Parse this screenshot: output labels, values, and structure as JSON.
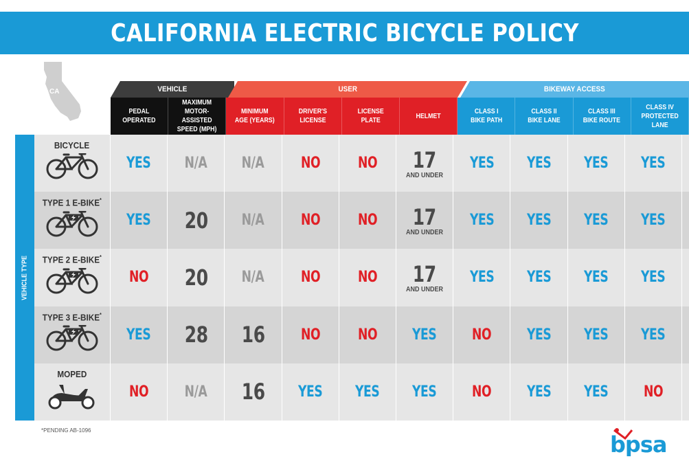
{
  "title": "CALIFORNIA ELECTRIC BICYCLE POLICY",
  "map_label": "CA",
  "groups": {
    "vehicle": "VEHICLE",
    "user": "USER",
    "bikeway": "BIKEWAY ACCESS"
  },
  "columns": [
    "PEDAL\nOPERATED",
    "MAXIMUM\nMOTOR-ASSISTED\nSPEED (MPH)",
    "MINIMUM\nAGE (YEARS)",
    "DRIVER'S\nLICENSE",
    "LICENSE\nPLATE",
    "HELMET",
    "CLASS I\nBIKE PATH",
    "CLASS II\nBIKE LANE",
    "CLASS III\nBIKE ROUTE",
    "CLASS IV\nPROTECTED LANE"
  ],
  "side_label": "VEHICLE TYPE",
  "rows": [
    {
      "label": "BICYCLE",
      "mark": "",
      "icon": "bicycle-icon",
      "cells": [
        {
          "v": "YES"
        },
        {
          "v": "N/A"
        },
        {
          "v": "N/A"
        },
        {
          "v": "NO"
        },
        {
          "v": "NO"
        },
        {
          "v": "17",
          "sub": "AND UNDER"
        },
        {
          "v": "YES"
        },
        {
          "v": "YES"
        },
        {
          "v": "YES"
        },
        {
          "v": "YES"
        }
      ]
    },
    {
      "label": "TYPE 1 E-BIKE",
      "mark": "*",
      "icon": "e-bike-icon",
      "cells": [
        {
          "v": "YES"
        },
        {
          "v": "20"
        },
        {
          "v": "N/A"
        },
        {
          "v": "NO"
        },
        {
          "v": "NO"
        },
        {
          "v": "17",
          "sub": "AND UNDER"
        },
        {
          "v": "YES"
        },
        {
          "v": "YES"
        },
        {
          "v": "YES"
        },
        {
          "v": "YES"
        }
      ]
    },
    {
      "label": "TYPE 2 E-BIKE",
      "mark": "*",
      "icon": "e-bike-icon",
      "cells": [
        {
          "v": "NO"
        },
        {
          "v": "20"
        },
        {
          "v": "N/A"
        },
        {
          "v": "NO"
        },
        {
          "v": "NO"
        },
        {
          "v": "17",
          "sub": "AND UNDER"
        },
        {
          "v": "YES"
        },
        {
          "v": "YES"
        },
        {
          "v": "YES"
        },
        {
          "v": "YES"
        }
      ]
    },
    {
      "label": "TYPE 3 E-BIKE",
      "mark": "*",
      "icon": "e-bike-icon",
      "cells": [
        {
          "v": "YES"
        },
        {
          "v": "28"
        },
        {
          "v": "16"
        },
        {
          "v": "NO"
        },
        {
          "v": "NO"
        },
        {
          "v": "YES"
        },
        {
          "v": "NO"
        },
        {
          "v": "YES"
        },
        {
          "v": "YES"
        },
        {
          "v": "YES"
        }
      ]
    },
    {
      "label": "MOPED",
      "mark": "",
      "icon": "moped-icon",
      "cells": [
        {
          "v": "NO"
        },
        {
          "v": "N/A"
        },
        {
          "v": "16"
        },
        {
          "v": "YES"
        },
        {
          "v": "YES"
        },
        {
          "v": "YES"
        },
        {
          "v": "NO"
        },
        {
          "v": "YES"
        },
        {
          "v": "YES"
        },
        {
          "v": "NO"
        }
      ]
    }
  ],
  "footnote": "*PENDING AB-1096",
  "logo": "bpsa",
  "colors": {
    "blue": "#1a9ad6",
    "red": "#e02026",
    "coral": "#ee5a47",
    "light_blue": "#5ab6e6",
    "dark": "#3d3d3d",
    "gray_text": "#9a9a9a"
  }
}
